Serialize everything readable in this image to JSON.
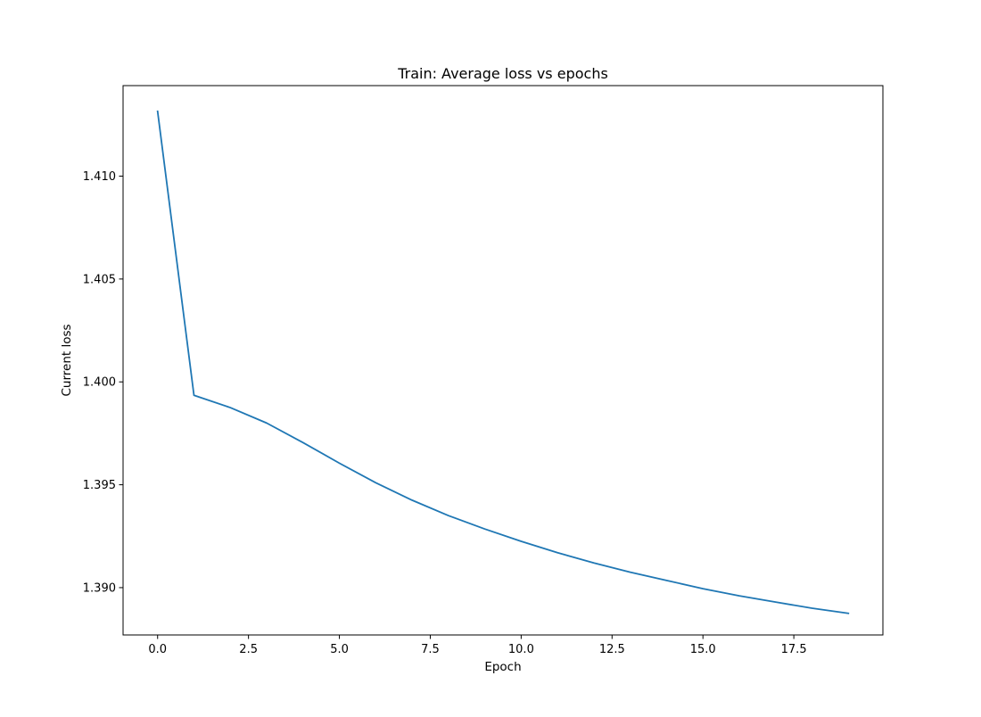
{
  "chart_data": {
    "type": "line",
    "title": "Train: Average loss vs epochs",
    "xlabel": "Epoch",
    "ylabel": "Current loss",
    "xlim": [
      -0.95,
      19.95
    ],
    "ylim": [
      1.3877,
      1.4144
    ],
    "x_ticks": [
      0.0,
      2.5,
      5.0,
      7.5,
      10.0,
      12.5,
      15.0,
      17.5
    ],
    "x_tick_labels": [
      "0.0",
      "2.5",
      "5.0",
      "7.5",
      "10.0",
      "12.5",
      "15.0",
      "17.5"
    ],
    "y_ticks": [
      1.39,
      1.395,
      1.4,
      1.405,
      1.41
    ],
    "y_tick_labels": [
      "1.390",
      "1.395",
      "1.400",
      "1.405",
      "1.410"
    ],
    "grid": false,
    "series": [
      {
        "color": "#1f77b4",
        "x": [
          0,
          1,
          2,
          3,
          4,
          5,
          6,
          7,
          8,
          9,
          10,
          11,
          12,
          13,
          14,
          15,
          16,
          17,
          18,
          19
        ],
        "values": [
          1.41315,
          1.39935,
          1.39875,
          1.398,
          1.39705,
          1.39605,
          1.3951,
          1.39425,
          1.3935,
          1.39285,
          1.39225,
          1.3917,
          1.3912,
          1.39075,
          1.39035,
          1.38995,
          1.3896,
          1.3893,
          1.389,
          1.38875
        ]
      }
    ]
  }
}
